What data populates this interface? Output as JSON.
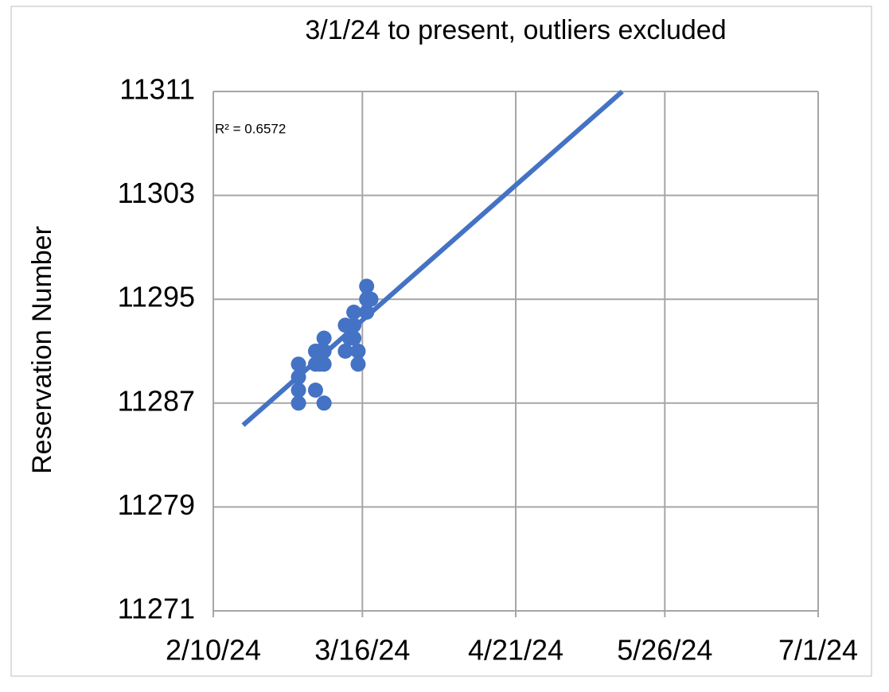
{
  "chart_data": {
    "type": "scatter",
    "title": "3/1/24 to present, outliers excluded",
    "y_label": "Reservation Number",
    "annotation": "R² = 0.6572",
    "color": "#4472c4",
    "grid": true,
    "x": [
      "2024-03-01",
      "2024-03-01",
      "2024-03-01",
      "2024-03-01",
      "2024-03-05",
      "2024-03-05",
      "2024-03-05",
      "2024-03-06",
      "2024-03-06",
      "2024-03-07",
      "2024-03-07",
      "2024-03-07",
      "2024-03-07",
      "2024-03-12",
      "2024-03-12",
      "2024-03-13",
      "2024-03-14",
      "2024-03-14",
      "2024-03-14",
      "2024-03-15",
      "2024-03-15",
      "2024-03-17",
      "2024-03-17",
      "2024-03-17",
      "2024-03-18"
    ],
    "values": [
      11290,
      11289,
      11288,
      11287,
      11291,
      11290,
      11288,
      11291,
      11290,
      11292,
      11291,
      11290,
      11287,
      11293,
      11291,
      11292,
      11294,
      11293,
      11292,
      11290,
      11291,
      11296,
      11295,
      11294,
      11295
    ],
    "trendline": {
      "x": [
        "2024-02-17",
        "2024-05-16"
      ],
      "values": [
        11285.3,
        11311
      ]
    },
    "xlim": [
      "2024-02-10",
      "2024-07-01"
    ],
    "xticks": [
      {
        "value": "2024-02-10",
        "label": "2/10/24"
      },
      {
        "value": "2024-03-16",
        "label": "3/16/24"
      },
      {
        "value": "2024-04-21",
        "label": "4/21/24"
      },
      {
        "value": "2024-05-26",
        "label": "5/26/24"
      },
      {
        "value": "2024-07-01",
        "label": "7/1/24"
      }
    ],
    "ylim": [
      11271,
      11311
    ],
    "yticks": [
      11271,
      11279,
      11287,
      11295,
      11303,
      11311
    ]
  }
}
